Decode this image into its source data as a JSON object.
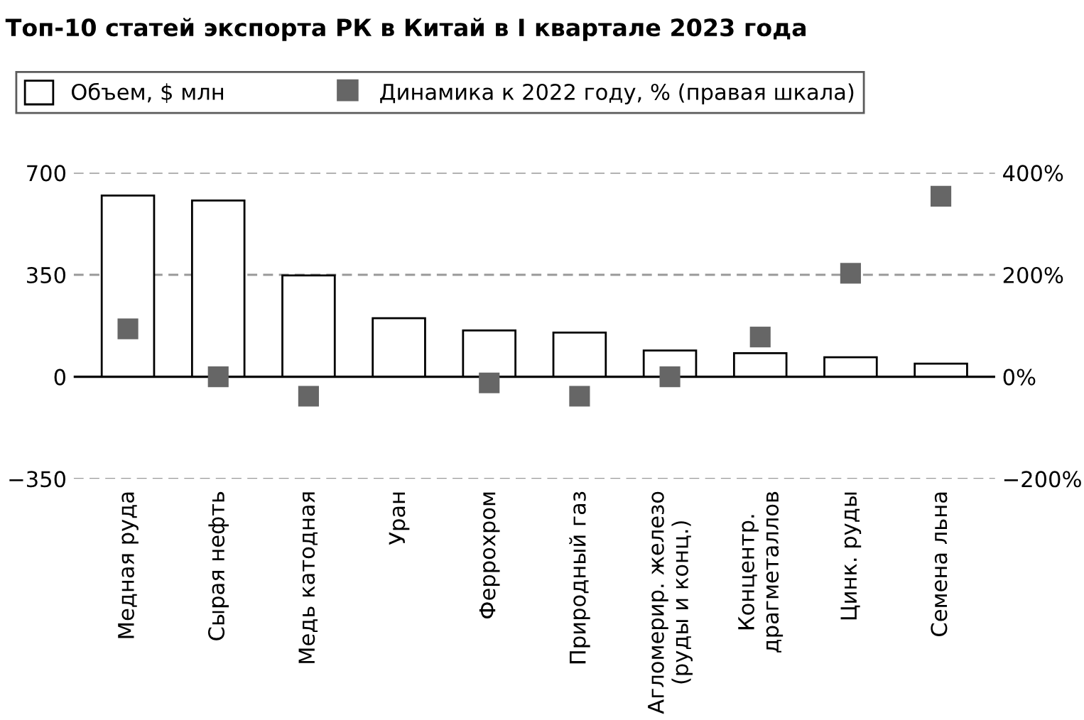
{
  "chart_data": {
    "type": "bar",
    "title": "Топ-10 статей экспорта РК в Китай в I квартале 2023 года",
    "categories": [
      "Медная руда",
      "Сырая нефть",
      "Медь катодная",
      "Уран",
      "Феррохром",
      "Природный газ",
      "Агломерир. железо\n(руды и конц.)",
      "Концентр.\nдрагметаллов",
      "Цинк. руды",
      "Семена льна"
    ],
    "series": [
      {
        "name": "Объем, $ млн",
        "color": "#ffffff",
        "values": [
          622,
          605,
          348,
          201,
          159,
          152,
          90,
          81,
          67,
          45
        ]
      },
      {
        "name": "Динамика к 2022 году, % (правая шкала)",
        "type": "scatter",
        "axis": "y2",
        "color": "#666666",
        "values": [
          94,
          0,
          -38,
          null,
          -12,
          -38,
          0,
          78,
          203,
          354
        ]
      }
    ],
    "ylim": [
      -350,
      700
    ],
    "yticks": [
      {
        "value": -350,
        "label": "−350"
      },
      0,
      350,
      700
    ],
    "y2lim": [
      -200,
      400
    ],
    "y2ticks": [
      {
        "value": -200,
        "label": "−200%"
      },
      {
        "value": 0,
        "label": "0%"
      },
      {
        "value": 200,
        "label": "200%"
      },
      {
        "value": 400,
        "label": "400%"
      }
    ],
    "ref_lines": [
      {
        "axis": "y",
        "value": 0,
        "color": "#000000",
        "line_style": "solid"
      }
    ],
    "grid": "y",
    "legend": "top left",
    "marker": "square"
  }
}
